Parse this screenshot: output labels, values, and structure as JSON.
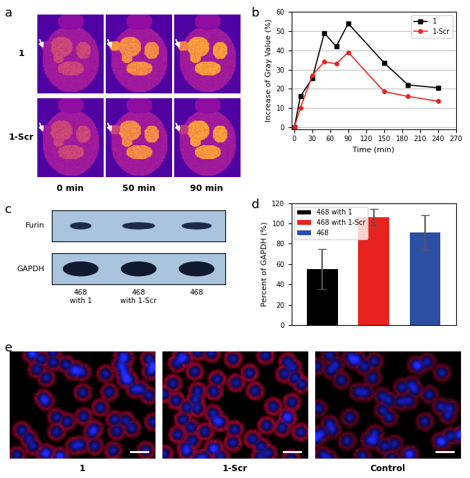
{
  "panel_labels": [
    "a",
    "b",
    "c",
    "d",
    "e"
  ],
  "chart_data": [
    {
      "type": "line",
      "x": [
        0,
        10,
        30,
        50,
        70,
        90,
        150,
        190,
        240
      ],
      "series": [
        {
          "name": "1",
          "color": "#000000",
          "marker": "square",
          "values": [
            0,
            16,
            25.5,
            49,
            42,
            54,
            33.5,
            22,
            20.5
          ]
        },
        {
          "name": "1-Scr",
          "color": "#e8231f",
          "marker": "circle",
          "values": [
            0,
            10,
            27,
            34,
            33,
            39,
            18.5,
            16,
            13.5
          ]
        }
      ],
      "x_label": "Time (min)",
      "y_label": "Increase of Gray Value (%)",
      "xlim": [
        -5,
        270
      ],
      "xticks": [
        0,
        30,
        60,
        90,
        120,
        150,
        180,
        210,
        240,
        270
      ],
      "ylim": [
        -1,
        60
      ],
      "yticks": [
        0,
        10,
        20,
        30,
        40,
        50,
        60
      ],
      "grid": true,
      "legend": "upper right"
    },
    {
      "type": "bar",
      "categories": [
        null
      ],
      "series": [
        {
          "name": "468 with 1",
          "color": "#000000",
          "values": [
            55
          ],
          "error": [
            20
          ]
        },
        {
          "name": "468 with 1-Scr",
          "color": "#e8231f",
          "values": [
            106
          ],
          "error": [
            8
          ]
        },
        {
          "name": "468",
          "color": "#2d4fa3",
          "values": [
            91
          ],
          "error": [
            17
          ]
        }
      ],
      "y_label": "Percent of GAPDH (%)",
      "ylim": [
        0,
        120
      ],
      "yticks": [
        0,
        20,
        40,
        60,
        80,
        100,
        120
      ],
      "legend": "upper left",
      "tick_labels": "y"
    }
  ],
  "mri_images": {
    "row_labels": [
      "1",
      "1-Scr"
    ],
    "column_labels": [
      "0 min",
      "50 min",
      "90 min"
    ]
  },
  "western_blot": {
    "bands": [
      "Furin",
      "GAPDH"
    ],
    "lanes": [
      "468\nwith 1",
      "468\nwith 1-Scr",
      "468"
    ]
  },
  "fluorescence_images": {
    "labels": [
      "1",
      "1-Scr",
      "Control"
    ]
  }
}
